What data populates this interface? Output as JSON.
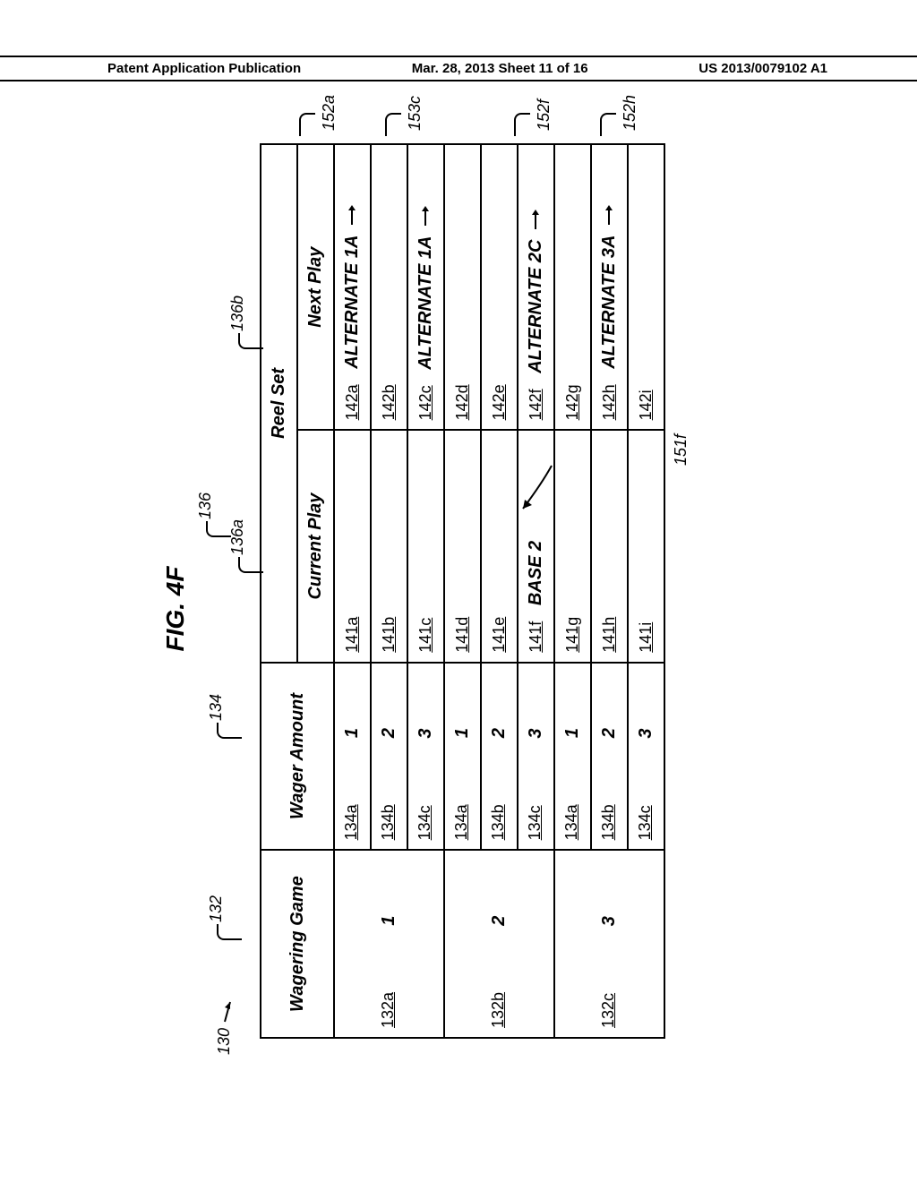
{
  "header": {
    "left": "Patent Application Publication",
    "center": "Mar. 28, 2013  Sheet 11 of 16",
    "right": "US 2013/0079102 A1"
  },
  "figure": {
    "title": "FIG. 4F",
    "lead_ref": "130",
    "col_refs": {
      "wg": "132",
      "wa": "134",
      "reel": "136",
      "cur": "136a",
      "next": "136b"
    },
    "headers": {
      "wagering_game": "Wagering Game",
      "wager_amount": "Wager Amount",
      "reel_set": "Reel Set",
      "current_play": "Current Play",
      "next_play": "Next Play"
    },
    "side_refs": {
      "r152a": "152a",
      "r153c": "153c",
      "r152f": "152f",
      "r152h": "152h",
      "r151f": "151f"
    },
    "groups": [
      {
        "wg_ref": "132a",
        "wg_val": "1",
        "rows": [
          {
            "wa_ref": "134a",
            "wa_val": "1",
            "cp_ref": "141a",
            "cp_val": "",
            "np_ref": "142a",
            "np_val": "ALTERNATE 1A",
            "np_arrow": true
          },
          {
            "wa_ref": "134b",
            "wa_val": "2",
            "cp_ref": "141b",
            "cp_val": "",
            "np_ref": "142b",
            "np_val": "",
            "np_arrow": false
          },
          {
            "wa_ref": "134c",
            "wa_val": "3",
            "cp_ref": "141c",
            "cp_val": "",
            "np_ref": "142c",
            "np_val": "ALTERNATE 1A",
            "np_arrow": true
          }
        ]
      },
      {
        "wg_ref": "132b",
        "wg_val": "2",
        "rows": [
          {
            "wa_ref": "134a",
            "wa_val": "1",
            "cp_ref": "141d",
            "cp_val": "",
            "np_ref": "142d",
            "np_val": "",
            "np_arrow": false
          },
          {
            "wa_ref": "134b",
            "wa_val": "2",
            "cp_ref": "141e",
            "cp_val": "",
            "np_ref": "142e",
            "np_val": "",
            "np_arrow": false
          },
          {
            "wa_ref": "134c",
            "wa_val": "3",
            "cp_ref": "141f",
            "cp_val": "BASE 2",
            "np_ref": "142f",
            "np_val": "ALTERNATE 2C",
            "np_arrow": true
          }
        ]
      },
      {
        "wg_ref": "132c",
        "wg_val": "3",
        "rows": [
          {
            "wa_ref": "134a",
            "wa_val": "1",
            "cp_ref": "141g",
            "cp_val": "",
            "np_ref": "142g",
            "np_val": "",
            "np_arrow": false
          },
          {
            "wa_ref": "134b",
            "wa_val": "2",
            "cp_ref": "141h",
            "cp_val": "",
            "np_ref": "142h",
            "np_val": "ALTERNATE 3A",
            "np_arrow": true
          },
          {
            "wa_ref": "134c",
            "wa_val": "3",
            "cp_ref": "141i",
            "cp_val": "",
            "np_ref": "142i",
            "np_val": "",
            "np_arrow": false
          }
        ]
      }
    ]
  }
}
